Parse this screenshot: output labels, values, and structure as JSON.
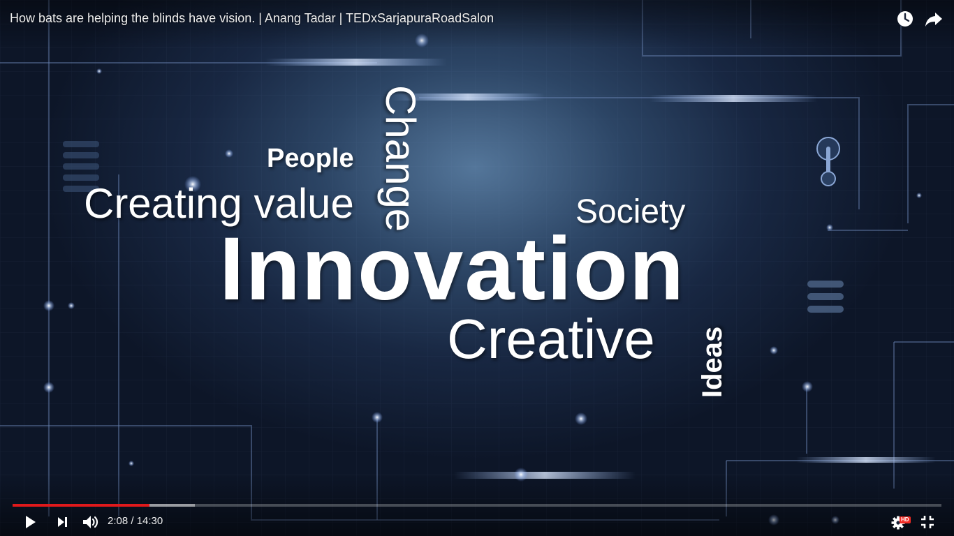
{
  "video": {
    "title": "How bats are helping the blinds have vision. | Anang Tadar | TEDxSarjapuraRoadSalon"
  },
  "top_controls": {
    "watch_later_icon": "clock-icon",
    "share_icon": "share-arrow-icon"
  },
  "frame_words": {
    "innovation": "Innovation",
    "creating_value": "Creating value",
    "people": "People",
    "change": "Change",
    "society": "Society",
    "creative": "Creative",
    "ideas": "Ideas"
  },
  "controls": {
    "current_time": "2:08",
    "duration": "14:30",
    "time_display": "2:08 / 14:30",
    "played_fraction": 0.147,
    "loaded_fraction": 0.196,
    "settings_badge": "HD",
    "icons": [
      "play-icon",
      "next-icon",
      "volume-icon",
      "settings-gear-icon",
      "exit-fullscreen-icon"
    ]
  },
  "colors": {
    "progress_played": "#e0191b",
    "hd_badge": "#f12b24",
    "text": "#ffffff"
  }
}
